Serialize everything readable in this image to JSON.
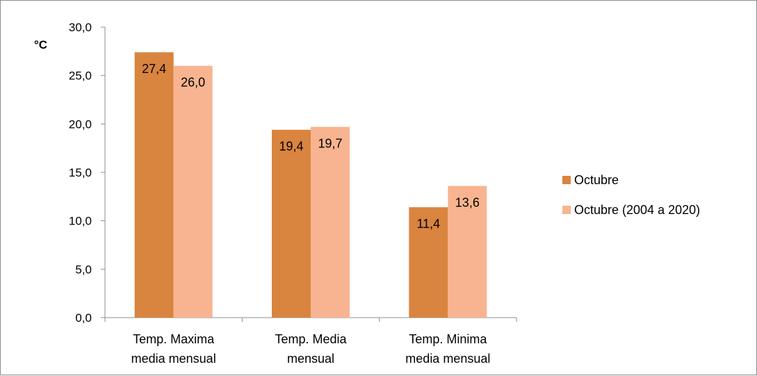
{
  "chart_data": {
    "type": "bar",
    "unit_label": "°C",
    "categories": [
      [
        "Temp. Maxima",
        "media mensual"
      ],
      [
        "Temp. Media",
        "mensual"
      ],
      [
        "Temp. Minima",
        "media mensual"
      ]
    ],
    "series": [
      {
        "name": "Octubre",
        "color": "#d9843f",
        "values": [
          27.4,
          19.4,
          11.4
        ],
        "labels": [
          "27,4",
          "19,4",
          "11,4"
        ]
      },
      {
        "name": "Octubre (2004 a 2020)",
        "color": "#f8b490",
        "values": [
          26.0,
          19.7,
          13.6
        ],
        "labels": [
          "26,0",
          "19,7",
          "13,6"
        ]
      }
    ],
    "yticks": [
      "0,0",
      "5,0",
      "10,0",
      "15,0",
      "20,0",
      "25,0",
      "30,0"
    ],
    "ylim": [
      0,
      30
    ],
    "ystep": 5,
    "grid": false,
    "legend_position": "right"
  }
}
